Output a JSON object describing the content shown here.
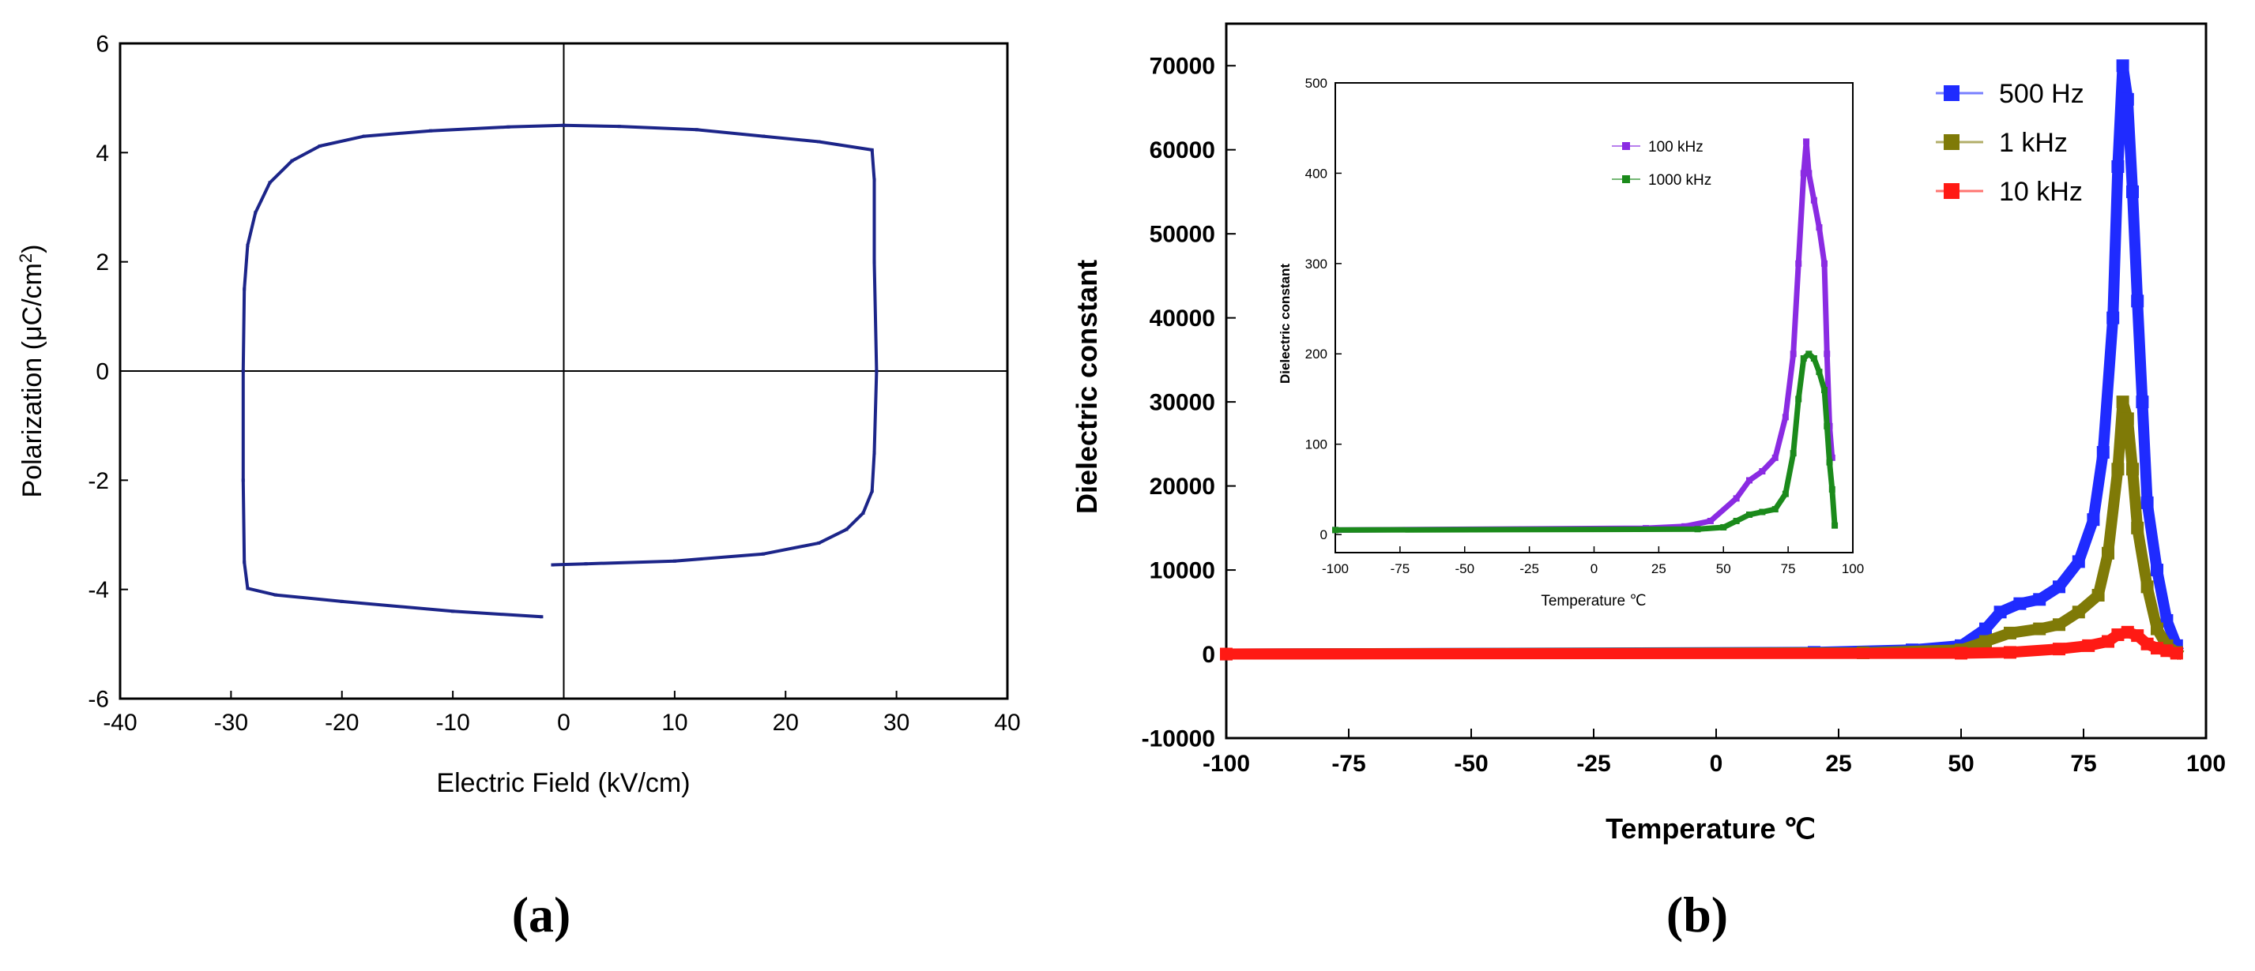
{
  "panel_labels": {
    "a": "(a)",
    "b": "(b)"
  },
  "colors": {
    "loop": "#1c2589",
    "f500": "#1f2bff",
    "f1k": "#7f7a07",
    "f10k": "#ff1a14",
    "f100k": "#8a2be2",
    "f1000k": "#1b8a1b",
    "axis": "#000000"
  },
  "chart_data": [
    {
      "id": "a",
      "type": "line",
      "xlabel": "Electric Field (kV/cm)",
      "ylabel": "Polarization (μC/cm²)",
      "ylabel_main": "Polarization (μC/cm",
      "ylabel_sup": "2",
      "ylabel_end": ")",
      "xlim": [
        -40,
        40
      ],
      "ylim": [
        -6,
        6
      ],
      "xticks": [
        -40,
        -30,
        -20,
        -10,
        0,
        10,
        20,
        30,
        40
      ],
      "yticks": [
        -6,
        -4,
        -2,
        0,
        2,
        4,
        6
      ],
      "zero_lines": true,
      "series": [
        {
          "color_key": "loop",
          "points": [
            [
              -2,
              -4.5
            ],
            [
              -10,
              -4.4
            ],
            [
              -20,
              -4.22
            ],
            [
              -26,
              -4.1
            ],
            [
              -28.5,
              -3.98
            ],
            [
              -28.8,
              -3.5
            ],
            [
              -28.9,
              -2
            ],
            [
              -28.9,
              0
            ],
            [
              -28.8,
              1.5
            ],
            [
              -28.5,
              2.3
            ],
            [
              -27.8,
              2.9
            ],
            [
              -26.5,
              3.45
            ],
            [
              -24.5,
              3.85
            ],
            [
              -22,
              4.12
            ],
            [
              -18,
              4.3
            ],
            [
              -12,
              4.4
            ],
            [
              -5,
              4.47
            ],
            [
              0,
              4.5
            ],
            [
              5,
              4.48
            ],
            [
              12,
              4.42
            ],
            [
              18,
              4.3
            ],
            [
              23,
              4.2
            ],
            [
              27.8,
              4.05
            ],
            [
              28,
              3.5
            ],
            [
              28,
              2
            ],
            [
              28.2,
              0
            ],
            [
              28,
              -1.5
            ],
            [
              27.8,
              -2.2
            ],
            [
              27,
              -2.6
            ],
            [
              25.5,
              -2.9
            ],
            [
              23,
              -3.15
            ],
            [
              18,
              -3.35
            ],
            [
              10,
              -3.48
            ],
            [
              2,
              -3.53
            ],
            [
              -1,
              -3.55
            ]
          ]
        }
      ]
    },
    {
      "id": "b",
      "type": "scatter",
      "xlabel": "Temperature ℃",
      "ylabel": "Dielectric constant",
      "xlim": [
        -100,
        100
      ],
      "ylim": [
        -10000,
        75000
      ],
      "xticks": [
        -100,
        -75,
        -50,
        -25,
        0,
        25,
        50,
        75,
        100
      ],
      "yticks": [
        -10000,
        0,
        10000,
        20000,
        30000,
        40000,
        50000,
        60000,
        70000
      ],
      "legend": "top-right",
      "series": [
        {
          "name": "500 Hz",
          "color_key": "f500",
          "points": [
            [
              -100,
              0
            ],
            [
              20,
              200
            ],
            [
              40,
              500
            ],
            [
              50,
              1000
            ],
            [
              55,
              3000
            ],
            [
              58,
              5000
            ],
            [
              62,
              6000
            ],
            [
              66,
              6500
            ],
            [
              70,
              8000
            ],
            [
              74,
              11000
            ],
            [
              77,
              16000
            ],
            [
              79,
              24000
            ],
            [
              81,
              40000
            ],
            [
              82,
              58000
            ],
            [
              83,
              70000
            ],
            [
              84,
              66000
            ],
            [
              85,
              55000
            ],
            [
              86,
              42000
            ],
            [
              87,
              30000
            ],
            [
              88,
              18000
            ],
            [
              90,
              10000
            ],
            [
              92,
              4000
            ],
            [
              94,
              1000
            ]
          ]
        },
        {
          "name": "1 kHz",
          "color_key": "f1k",
          "points": [
            [
              -100,
              0
            ],
            [
              30,
              150
            ],
            [
              50,
              500
            ],
            [
              55,
              1500
            ],
            [
              60,
              2500
            ],
            [
              66,
              3000
            ],
            [
              70,
              3500
            ],
            [
              74,
              5000
            ],
            [
              78,
              7000
            ],
            [
              80,
              12000
            ],
            [
              82,
              22000
            ],
            [
              83,
              30000
            ],
            [
              84,
              28000
            ],
            [
              85,
              22000
            ],
            [
              86,
              15000
            ],
            [
              88,
              8000
            ],
            [
              90,
              3000
            ],
            [
              92,
              1000
            ],
            [
              94,
              200
            ]
          ]
        },
        {
          "name": "10 kHz",
          "color_key": "f10k",
          "points": [
            [
              -100,
              0
            ],
            [
              50,
              100
            ],
            [
              60,
              200
            ],
            [
              70,
              600
            ],
            [
              76,
              1000
            ],
            [
              80,
              1500
            ],
            [
              82,
              2300
            ],
            [
              84,
              2600
            ],
            [
              86,
              2200
            ],
            [
              88,
              1200
            ],
            [
              90,
              700
            ],
            [
              92,
              400
            ],
            [
              94,
              100
            ]
          ]
        }
      ],
      "inset": {
        "type": "scatter",
        "xlabel": "Temperature ℃",
        "ylabel": "Dielectric constant",
        "xlim": [
          -100,
          100
        ],
        "ylim": [
          -20,
          500
        ],
        "xticks": [
          -100,
          -75,
          -50,
          -25,
          0,
          25,
          50,
          75,
          100
        ],
        "yticks": [
          0,
          100,
          200,
          300,
          400,
          500
        ],
        "legend": "top-center",
        "series": [
          {
            "name": "100 kHz",
            "color_key": "f100k",
            "points": [
              [
                -100,
                5
              ],
              [
                20,
                7
              ],
              [
                35,
                9
              ],
              [
                45,
                15
              ],
              [
                55,
                40
              ],
              [
                60,
                60
              ],
              [
                65,
                70
              ],
              [
                70,
                85
              ],
              [
                74,
                130
              ],
              [
                77,
                200
              ],
              [
                79,
                300
              ],
              [
                81,
                400
              ],
              [
                82,
                435
              ],
              [
                83,
                400
              ],
              [
                85,
                370
              ],
              [
                87,
                340
              ],
              [
                89,
                300
              ],
              [
                90,
                200
              ],
              [
                91,
                120
              ],
              [
                92,
                85
              ]
            ]
          },
          {
            "name": "1000 kHz",
            "color_key": "f1000k",
            "points": [
              [
                -100,
                5
              ],
              [
                40,
                6
              ],
              [
                50,
                8
              ],
              [
                55,
                15
              ],
              [
                60,
                22
              ],
              [
                65,
                25
              ],
              [
                70,
                28
              ],
              [
                74,
                45
              ],
              [
                77,
                90
              ],
              [
                79,
                150
              ],
              [
                81,
                195
              ],
              [
                83,
                200
              ],
              [
                85,
                195
              ],
              [
                87,
                180
              ],
              [
                89,
                160
              ],
              [
                90,
                120
              ],
              [
                91,
                80
              ],
              [
                92,
                50
              ],
              [
                93,
                10
              ]
            ]
          }
        ]
      }
    }
  ]
}
